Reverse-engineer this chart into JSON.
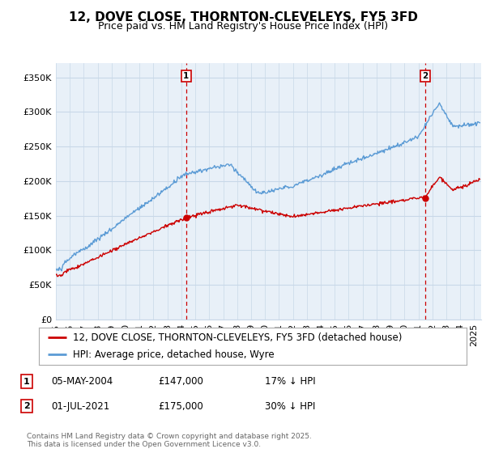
{
  "title": "12, DOVE CLOSE, THORNTON-CLEVELEYS, FY5 3FD",
  "subtitle": "Price paid vs. HM Land Registry's House Price Index (HPI)",
  "ylabel_ticks": [
    "£0",
    "£50K",
    "£100K",
    "£150K",
    "£200K",
    "£250K",
    "£300K",
    "£350K"
  ],
  "ytick_values": [
    0,
    50000,
    100000,
    150000,
    200000,
    250000,
    300000,
    350000
  ],
  "ylim": [
    0,
    370000
  ],
  "xlim_start": 1995.0,
  "xlim_end": 2025.5,
  "sale1_date": 2004.34,
  "sale1_price": 147000,
  "sale1_label": "1",
  "sale2_date": 2021.5,
  "sale2_price": 175000,
  "sale2_label": "2",
  "hpi_color": "#5b9bd5",
  "hpi_fill_color": "#ddeeff",
  "price_color": "#cc0000",
  "vline_color": "#cc0000",
  "grid_color": "#c8d8e8",
  "background_color": "#ffffff",
  "plot_bg_color": "#e8f0f8",
  "legend_label_price": "12, DOVE CLOSE, THORNTON-CLEVELEYS, FY5 3FD (detached house)",
  "legend_label_hpi": "HPI: Average price, detached house, Wyre",
  "footer": "Contains HM Land Registry data © Crown copyright and database right 2025.\nThis data is licensed under the Open Government Licence v3.0.",
  "title_fontsize": 11,
  "subtitle_fontsize": 9,
  "tick_fontsize": 8,
  "legend_fontsize": 8.5
}
